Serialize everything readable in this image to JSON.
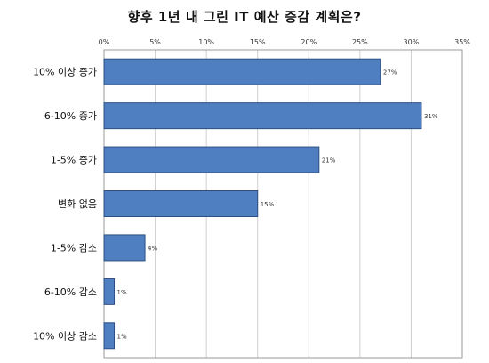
{
  "chart_data": {
    "type": "bar",
    "orientation": "horizontal",
    "title": "향후 1년 내 그린 IT 예산 증감 계획은?",
    "categories": [
      "10% 이상 증가",
      "6-10% 증가",
      "1-5% 증가",
      "변화 없음",
      "1-5% 감소",
      "6-10% 감소",
      "10% 이상 감소"
    ],
    "values": [
      27,
      31,
      21,
      15,
      4,
      1,
      1
    ],
    "data_labels": [
      "27%",
      "31%",
      "21%",
      "15%",
      "4%",
      "1%",
      "1%"
    ],
    "xlim": [
      0,
      35
    ],
    "x_ticks": [
      0,
      5,
      10,
      15,
      20,
      25,
      30,
      35
    ],
    "x_tick_labels": [
      "0%",
      "5%",
      "10%",
      "15%",
      "20%",
      "25%",
      "30%",
      "35%"
    ],
    "xaxis_position": "top",
    "grid": true,
    "legend": "none",
    "colors": {
      "bar_fill": "#4f7fc1",
      "bar_stroke": "#2d4f82",
      "grid": "#cfcfcf",
      "frame": "#9a9a9a"
    }
  }
}
